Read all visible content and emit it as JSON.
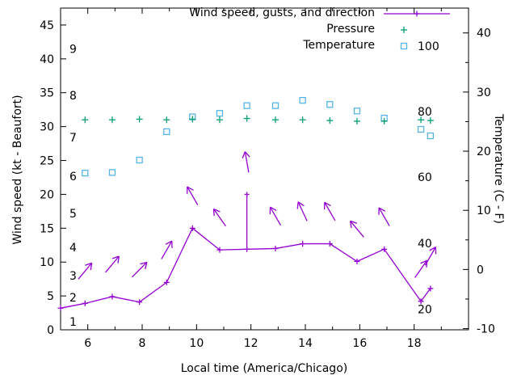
{
  "chart_data": {
    "type": "line",
    "xlabel": "Local time (America/Chicago)",
    "ylabel_left": "Wind speed (kt - Beaufort)",
    "ylabel_right": "Temperature (C - F)",
    "background_color": "#ffffff",
    "axis_color": "#000000",
    "x_min": 5,
    "x_max": 20,
    "x_major_ticks": [
      6,
      8,
      10,
      12,
      14,
      16,
      18
    ],
    "x_minor_ticks": [
      5,
      7,
      9,
      11,
      13,
      15,
      17,
      19
    ],
    "y_left_min": 0,
    "y_left_max": 47.5,
    "y_left_ticks": [
      0,
      5,
      10,
      15,
      20,
      25,
      30,
      35,
      40,
      45
    ],
    "y_right_min": -10.2,
    "y_right_max": 44.2,
    "y_right_ticks": [
      -10,
      0,
      10,
      20,
      30,
      40
    ],
    "y_right_minor_ticks": [
      -5,
      5,
      15,
      25,
      35
    ],
    "beaufort_scale_labels": [
      {
        "label": "1",
        "kt": 1.2
      },
      {
        "label": "2",
        "kt": 4.8
      },
      {
        "label": "3",
        "kt": 8.0
      },
      {
        "label": "4",
        "kt": 12.2
      },
      {
        "label": "5",
        "kt": 17.2
      },
      {
        "label": "6",
        "kt": 22.7
      },
      {
        "label": "7",
        "kt": 28.4
      },
      {
        "label": "8",
        "kt": 34.6
      },
      {
        "label": "9",
        "kt": 41.5
      }
    ],
    "fahrenheit_scale_labels": [
      {
        "label": "20",
        "c": -6.7
      },
      {
        "label": "40",
        "c": 4.4
      },
      {
        "label": "60",
        "c": 15.6
      },
      {
        "label": "80",
        "c": 26.7
      },
      {
        "label": "100",
        "c": 37.8
      }
    ],
    "legend": [
      {
        "id": "wind",
        "label": "Wind speed, gusts, and direction",
        "marker": "line-plus",
        "color": "#9400d3"
      },
      {
        "id": "pressure",
        "label": "Pressure",
        "marker": "plus",
        "color": "#009e73"
      },
      {
        "id": "temperature",
        "label": "Temperature",
        "marker": "open-square",
        "color": "#56b4e9"
      }
    ],
    "series": {
      "wind": {
        "name": "Wind speed, gusts, and direction",
        "color": "#9400d3",
        "points": [
          {
            "x": 5.0,
            "speed": 3.2
          },
          {
            "x": 5.9,
            "speed": 3.9,
            "dir": 40
          },
          {
            "x": 6.9,
            "speed": 4.9,
            "dir": 40
          },
          {
            "x": 7.9,
            "speed": 4.1,
            "dir": 45
          },
          {
            "x": 8.9,
            "speed": 7.0,
            "dir": 30
          },
          {
            "x": 9.85,
            "speed": 15.0,
            "dir": -30
          },
          {
            "x": 10.85,
            "speed": 11.8,
            "dir": -35
          },
          {
            "x": 11.85,
            "speed": 11.9,
            "gust": 20.0,
            "dir": -10
          },
          {
            "x": 12.9,
            "speed": 12.0,
            "dir": -30
          },
          {
            "x": 13.9,
            "speed": 12.7,
            "dir": -25
          },
          {
            "x": 14.9,
            "speed": 12.7,
            "dir": -30
          },
          {
            "x": 15.9,
            "speed": 10.1,
            "dir": -40
          },
          {
            "x": 16.9,
            "speed": 11.9,
            "dir": -30
          },
          {
            "x": 18.25,
            "speed": 4.2,
            "dir": 35
          },
          {
            "x": 18.6,
            "speed": 6.1,
            "dir": 30
          }
        ]
      },
      "pressure": {
        "name": "Pressure",
        "color": "#009e73",
        "x": [
          5.9,
          6.9,
          7.9,
          8.9,
          9.85,
          10.85,
          11.85,
          12.9,
          13.9,
          14.9,
          15.9,
          16.9,
          18.25,
          18.6
        ],
        "values": [
          31.0,
          31.0,
          31.1,
          31.0,
          31.1,
          31.0,
          31.2,
          31.0,
          31.0,
          30.9,
          30.8,
          30.8,
          31.0,
          30.9
        ]
      },
      "temperature": {
        "name": "Temperature",
        "color": "#56b4e9",
        "x": [
          5.9,
          6.9,
          7.9,
          8.9,
          9.85,
          10.85,
          11.85,
          12.9,
          13.9,
          14.9,
          15.9,
          16.9,
          18.25,
          18.6
        ],
        "values_c": [
          16.3,
          16.4,
          18.5,
          23.3,
          25.8,
          26.4,
          27.7,
          27.7,
          28.6,
          27.9,
          26.8,
          25.6,
          23.7,
          22.6
        ]
      }
    }
  }
}
